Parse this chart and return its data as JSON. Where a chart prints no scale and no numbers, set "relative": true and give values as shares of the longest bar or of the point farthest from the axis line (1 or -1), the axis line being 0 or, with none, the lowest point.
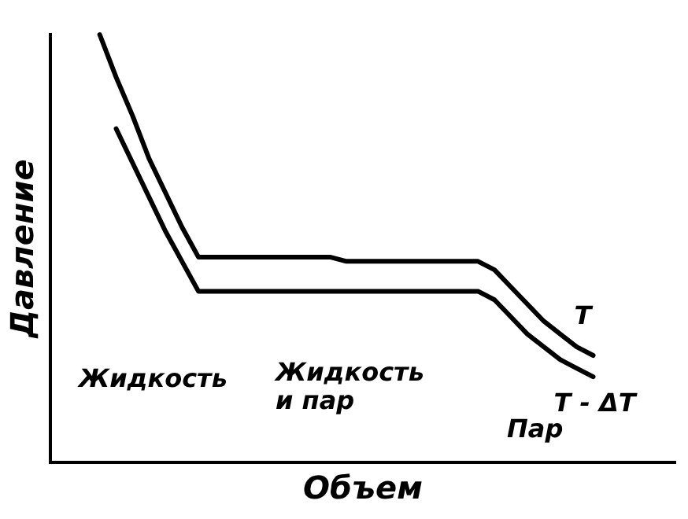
{
  "chart_data": {
    "type": "line",
    "relative": true,
    "xlabel": "Объем",
    "ylabel": "Давление",
    "legend": false,
    "grid": false,
    "marker": "none",
    "line_style": "solid",
    "categories": [
      null,
      null,
      null,
      null,
      null,
      null,
      null,
      null,
      null,
      null,
      null,
      null,
      null,
      null,
      null,
      null,
      null,
      null,
      null,
      null,
      null,
      null,
      null,
      null,
      null,
      null,
      null,
      null,
      null,
      null,
      null,
      null,
      null,
      null,
      null,
      null,
      null,
      null,
      null
    ],
    "series": [
      {
        "name": "T",
        "color": "#000000",
        "values": [
          null,
          null,
          null,
          1.0,
          0.9,
          0.81,
          0.71,
          0.63,
          0.55,
          0.48,
          0.48,
          0.48,
          0.48,
          0.48,
          0.48,
          0.48,
          0.48,
          0.48,
          0.47,
          0.47,
          0.47,
          0.47,
          0.47,
          0.47,
          0.47,
          0.47,
          0.47,
          0.45,
          0.41,
          0.37,
          0.33,
          0.3,
          0.27,
          0.25,
          null,
          null,
          null,
          null,
          null
        ]
      },
      {
        "name": "T - ΔT",
        "color": "#000000",
        "values": [
          null,
          null,
          null,
          null,
          0.78,
          0.7,
          0.62,
          0.54,
          0.47,
          0.4,
          0.4,
          0.4,
          0.4,
          0.4,
          0.4,
          0.4,
          0.4,
          0.4,
          0.4,
          0.4,
          0.4,
          0.4,
          0.4,
          0.4,
          0.4,
          0.4,
          0.4,
          0.38,
          0.34,
          0.3,
          0.27,
          0.24,
          0.22,
          0.2,
          null,
          null,
          null,
          null,
          null
        ]
      }
    ],
    "annotations": [
      "Жидкость",
      "Жидкость и пар",
      "Пар"
    ]
  }
}
